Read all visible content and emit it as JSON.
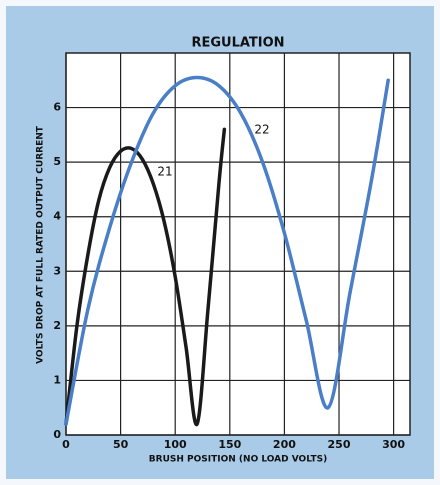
{
  "chart_data": {
    "type": "line",
    "title": "REGULATION",
    "x_label": "BRUSH POSITION (NO LOAD VOLTS)",
    "y_label": "VOLTS DROP AT FULL RATED OUTPUT CURRENT",
    "xlim": [
      0,
      315
    ],
    "xticks": [
      0,
      50,
      100,
      150,
      200,
      250,
      300
    ],
    "ylim": [
      0,
      7
    ],
    "yticks": [
      0,
      1,
      2,
      3,
      4,
      5,
      6
    ],
    "grid": true,
    "series": [
      {
        "name": "21",
        "color": "#1a1a1a",
        "x": [
          0,
          10,
          20,
          30,
          40,
          50,
          60,
          70,
          80,
          90,
          100,
          110,
          120,
          130,
          140,
          145
        ],
        "values": [
          0.2,
          2,
          3.3,
          4.3,
          4.9,
          5.2,
          5.25,
          5.05,
          4.6,
          3.9,
          2.9,
          1.6,
          0.2,
          2.3,
          4.6,
          5.6
        ]
      },
      {
        "name": "22",
        "color": "#4a7fc8",
        "x": [
          0,
          20,
          40,
          60,
          80,
          100,
          120,
          140,
          160,
          180,
          200,
          220,
          240,
          260,
          280,
          295
        ],
        "values": [
          0.2,
          2.3,
          3.8,
          5.0,
          5.9,
          6.4,
          6.55,
          6.4,
          5.9,
          5.0,
          3.7,
          2.1,
          0.5,
          2.6,
          4.7,
          6.5
        ]
      }
    ]
  }
}
